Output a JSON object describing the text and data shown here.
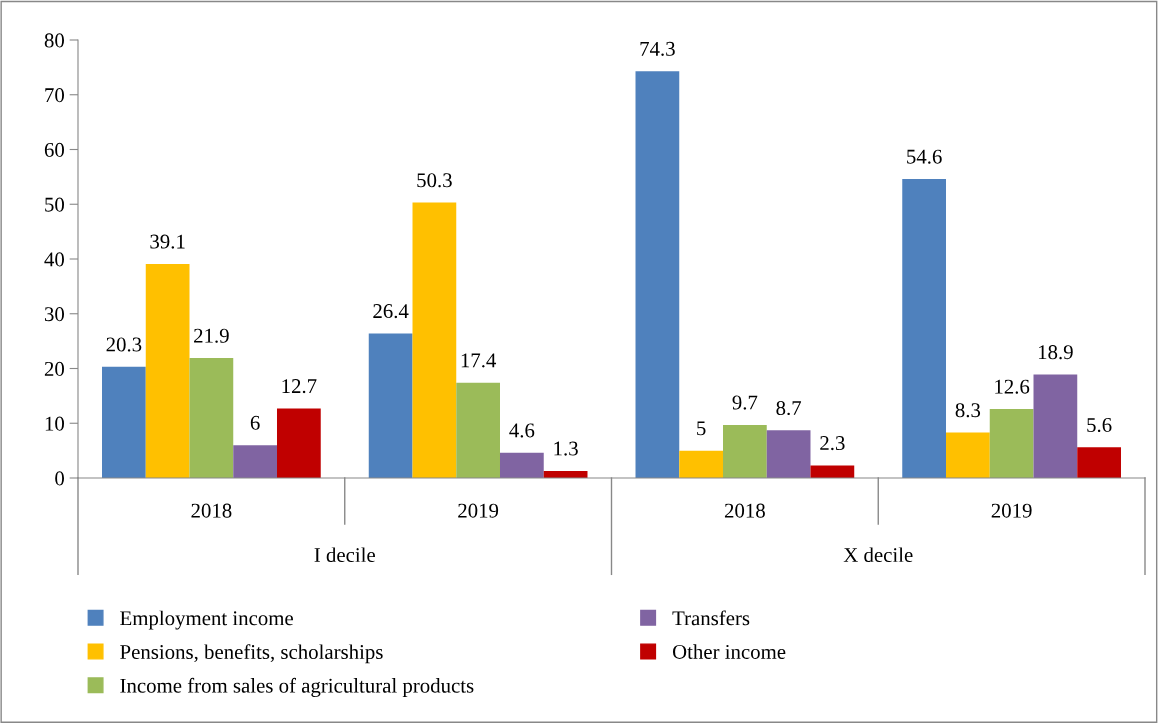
{
  "chart_data": {
    "type": "bar",
    "categories": [
      "2018",
      "2019",
      "2018",
      "2019"
    ],
    "series": [
      {
        "name": "Employment income",
        "color": "#4f81bd",
        "values": [
          20.3,
          26.4,
          74.3,
          54.6
        ]
      },
      {
        "name": "Pensions, benefits, scholarships",
        "color": "#ffc000",
        "values": [
          39.1,
          50.3,
          5,
          8.3
        ]
      },
      {
        "name": "Income from sales of agricultural products",
        "color": "#9bbb59",
        "values": [
          21.9,
          17.4,
          9.7,
          12.6
        ]
      },
      {
        "name": "Transfers",
        "color": "#8064a2",
        "values": [
          6,
          4.6,
          8.7,
          18.9
        ]
      },
      {
        "name": "Other income",
        "color": "#c00000",
        "values": [
          12.7,
          1.3,
          2.3,
          5.6
        ]
      }
    ],
    "annotations": [
      "I decile",
      "X decile"
    ],
    "ylim": [
      0,
      80
    ],
    "yticks": [
      0,
      10,
      20,
      30,
      40,
      50,
      60,
      70,
      80
    ],
    "data_labels": true,
    "grid": false,
    "legend": "bottom"
  }
}
